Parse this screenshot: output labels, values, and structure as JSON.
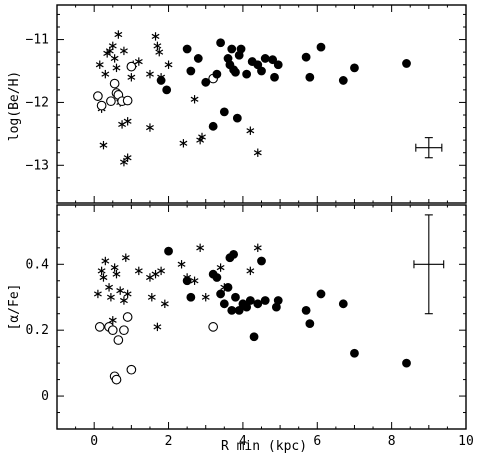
{
  "chart_data": [
    {
      "type": "scatter",
      "title": "",
      "xlabel": "R min (kpc)",
      "ylabel": "log(Be/H)",
      "xlim": [
        -1,
        10
      ],
      "ylim": [
        -13.6,
        -10.45
      ],
      "yticks": [
        {
          "value": -11,
          "label": "−11"
        },
        {
          "value": -12,
          "label": "−12"
        },
        {
          "value": -13,
          "label": "−13"
        }
      ],
      "error_bar": {
        "x": 9.0,
        "y": -12.72,
        "xerr": 0.35,
        "yerr": 0.16
      },
      "series": [
        {
          "marker": "star",
          "points": [
            [
              0.15,
              -11.4
            ],
            [
              0.2,
              -12.1
            ],
            [
              0.25,
              -12.68
            ],
            [
              0.3,
              -11.55
            ],
            [
              0.35,
              -11.22
            ],
            [
              0.42,
              -11.18
            ],
            [
              0.5,
              -11.1
            ],
            [
              0.55,
              -11.3
            ],
            [
              0.6,
              -11.45
            ],
            [
              0.65,
              -10.92
            ],
            [
              0.7,
              -12.0
            ],
            [
              0.75,
              -12.35
            ],
            [
              0.8,
              -11.18
            ],
            [
              0.8,
              -12.95
            ],
            [
              0.9,
              -12.3
            ],
            [
              0.9,
              -12.88
            ],
            [
              1.0,
              -11.6
            ],
            [
              1.05,
              -11.4
            ],
            [
              1.2,
              -11.35
            ],
            [
              1.5,
              -11.55
            ],
            [
              1.5,
              -12.4
            ],
            [
              1.65,
              -10.95
            ],
            [
              1.7,
              -11.1
            ],
            [
              1.75,
              -11.2
            ],
            [
              1.8,
              -11.6
            ],
            [
              2.0,
              -11.4
            ],
            [
              2.4,
              -12.65
            ],
            [
              2.7,
              -11.95
            ],
            [
              2.85,
              -12.6
            ],
            [
              2.9,
              -12.55
            ],
            [
              4.2,
              -12.45
            ],
            [
              4.4,
              -12.8
            ]
          ]
        },
        {
          "marker": "open",
          "points": [
            [
              0.1,
              -11.9
            ],
            [
              0.2,
              -12.05
            ],
            [
              0.45,
              -11.98
            ],
            [
              0.55,
              -11.7
            ],
            [
              0.6,
              -11.85
            ],
            [
              0.65,
              -11.88
            ],
            [
              0.75,
              -11.98
            ],
            [
              0.9,
              -11.97
            ],
            [
              1.0,
              -11.43
            ],
            [
              3.2,
              -11.62
            ]
          ]
        },
        {
          "marker": "filled",
          "points": [
            [
              1.8,
              -11.65
            ],
            [
              1.95,
              -11.8
            ],
            [
              2.5,
              -11.15
            ],
            [
              2.6,
              -11.5
            ],
            [
              2.8,
              -11.3
            ],
            [
              3.0,
              -11.68
            ],
            [
              3.2,
              -12.38
            ],
            [
              3.3,
              -11.55
            ],
            [
              3.4,
              -11.05
            ],
            [
              3.5,
              -12.15
            ],
            [
              3.6,
              -11.3
            ],
            [
              3.65,
              -11.4
            ],
            [
              3.7,
              -11.15
            ],
            [
              3.75,
              -11.48
            ],
            [
              3.8,
              -11.52
            ],
            [
              3.85,
              -12.25
            ],
            [
              3.9,
              -11.25
            ],
            [
              3.95,
              -11.15
            ],
            [
              4.1,
              -11.55
            ],
            [
              4.25,
              -11.35
            ],
            [
              4.4,
              -11.4
            ],
            [
              4.5,
              -11.5
            ],
            [
              4.6,
              -11.3
            ],
            [
              4.8,
              -11.32
            ],
            [
              4.85,
              -11.6
            ],
            [
              4.95,
              -11.4
            ],
            [
              5.7,
              -11.28
            ],
            [
              5.8,
              -11.6
            ],
            [
              6.1,
              -11.12
            ],
            [
              6.7,
              -11.65
            ],
            [
              7.0,
              -11.45
            ],
            [
              8.4,
              -11.38
            ]
          ]
        }
      ]
    },
    {
      "type": "scatter",
      "title": "",
      "xlabel": "R min (kpc)",
      "ylabel": "[α/Fe]",
      "xlim": [
        -1,
        10
      ],
      "ylim": [
        -0.1,
        0.58
      ],
      "xticks": [
        {
          "value": 0,
          "label": "0"
        },
        {
          "value": 2,
          "label": "2"
        },
        {
          "value": 4,
          "label": "4"
        },
        {
          "value": 6,
          "label": "6"
        },
        {
          "value": 8,
          "label": "8"
        },
        {
          "value": 10,
          "label": "10"
        }
      ],
      "yticks": [
        {
          "value": 0,
          "label": "0"
        },
        {
          "value": 0.2,
          "label": "0.2"
        },
        {
          "value": 0.4,
          "label": "0.4"
        }
      ],
      "error_bar": {
        "x": 9.0,
        "y": 0.4,
        "xerr": 0.4,
        "yerr": 0.15
      },
      "series": [
        {
          "marker": "star",
          "points": [
            [
              0.1,
              0.31
            ],
            [
              0.2,
              0.38
            ],
            [
              0.25,
              0.36
            ],
            [
              0.3,
              0.41
            ],
            [
              0.4,
              0.33
            ],
            [
              0.45,
              0.3
            ],
            [
              0.5,
              0.23
            ],
            [
              0.55,
              0.39
            ],
            [
              0.6,
              0.37
            ],
            [
              0.7,
              0.32
            ],
            [
              0.8,
              0.29
            ],
            [
              0.85,
              0.42
            ],
            [
              0.9,
              0.31
            ],
            [
              1.2,
              0.38
            ],
            [
              1.5,
              0.36
            ],
            [
              1.55,
              0.3
            ],
            [
              1.65,
              0.37
            ],
            [
              1.7,
              0.21
            ],
            [
              1.8,
              0.38
            ],
            [
              1.9,
              0.28
            ],
            [
              2.35,
              0.4
            ],
            [
              2.5,
              0.36
            ],
            [
              2.7,
              0.35
            ],
            [
              2.85,
              0.45
            ],
            [
              3.0,
              0.3
            ],
            [
              3.4,
              0.39
            ],
            [
              3.5,
              0.33
            ],
            [
              4.2,
              0.38
            ],
            [
              4.4,
              0.45
            ]
          ]
        },
        {
          "marker": "open",
          "points": [
            [
              0.15,
              0.21
            ],
            [
              0.4,
              0.21
            ],
            [
              0.5,
              0.2
            ],
            [
              0.55,
              0.06
            ],
            [
              0.6,
              0.05
            ],
            [
              0.65,
              0.17
            ],
            [
              0.8,
              0.2
            ],
            [
              0.9,
              0.24
            ],
            [
              1.0,
              0.08
            ],
            [
              3.2,
              0.21
            ]
          ]
        },
        {
          "marker": "filled",
          "points": [
            [
              2.0,
              0.44
            ],
            [
              2.5,
              0.35
            ],
            [
              2.6,
              0.3
            ],
            [
              3.2,
              0.37
            ],
            [
              3.3,
              0.36
            ],
            [
              3.4,
              0.31
            ],
            [
              3.5,
              0.28
            ],
            [
              3.6,
              0.33
            ],
            [
              3.65,
              0.42
            ],
            [
              3.7,
              0.26
            ],
            [
              3.75,
              0.43
            ],
            [
              3.8,
              0.3
            ],
            [
              3.9,
              0.26
            ],
            [
              4.0,
              0.28
            ],
            [
              4.1,
              0.27
            ],
            [
              4.2,
              0.29
            ],
            [
              4.3,
              0.18
            ],
            [
              4.4,
              0.28
            ],
            [
              4.5,
              0.41
            ],
            [
              4.6,
              0.29
            ],
            [
              4.9,
              0.27
            ],
            [
              4.95,
              0.29
            ],
            [
              5.7,
              0.26
            ],
            [
              5.8,
              0.22
            ],
            [
              6.1,
              0.31
            ],
            [
              6.7,
              0.28
            ],
            [
              7.0,
              0.13
            ],
            [
              8.4,
              0.1
            ]
          ]
        }
      ]
    }
  ]
}
